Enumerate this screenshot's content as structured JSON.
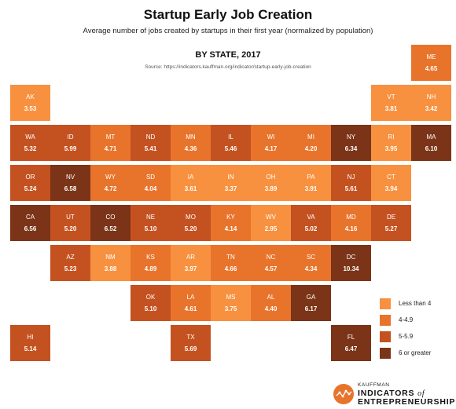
{
  "chart_data": {
    "type": "table",
    "title": "Startup Early Job Creation",
    "subtitle": "Average number of jobs created by startups in their first year (normalized by population)",
    "heading": "BY STATE, 2017",
    "source": "Source: https://indicators.kauffman.org/indicator/startup-early-job-creation",
    "legend": [
      {
        "label": "Less than 4",
        "color": "#f7913f"
      },
      {
        "label": "4-4.9",
        "color": "#e8742c"
      },
      {
        "label": "5-5.9",
        "color": "#c45221"
      },
      {
        "label": "6 or greater",
        "color": "#7b3418"
      }
    ],
    "states": [
      {
        "abbr": "ME",
        "value": "4.65",
        "row": 0,
        "col": 10
      },
      {
        "abbr": "AK",
        "value": "3.53",
        "row": 1,
        "col": 0
      },
      {
        "abbr": "VT",
        "value": "3.81",
        "row": 1,
        "col": 9
      },
      {
        "abbr": "NH",
        "value": "3.42",
        "row": 1,
        "col": 10
      },
      {
        "abbr": "WA",
        "value": "5.32",
        "row": 2,
        "col": 0
      },
      {
        "abbr": "ID",
        "value": "5.99",
        "row": 2,
        "col": 1
      },
      {
        "abbr": "MT",
        "value": "4.71",
        "row": 2,
        "col": 2
      },
      {
        "abbr": "ND",
        "value": "5.41",
        "row": 2,
        "col": 3
      },
      {
        "abbr": "MN",
        "value": "4.36",
        "row": 2,
        "col": 4
      },
      {
        "abbr": "IL",
        "value": "5.46",
        "row": 2,
        "col": 5
      },
      {
        "abbr": "WI",
        "value": "4.17",
        "row": 2,
        "col": 6
      },
      {
        "abbr": "MI",
        "value": "4.20",
        "row": 2,
        "col": 7
      },
      {
        "abbr": "NY",
        "value": "6.34",
        "row": 2,
        "col": 8
      },
      {
        "abbr": "RI",
        "value": "3.95",
        "row": 2,
        "col": 9
      },
      {
        "abbr": "MA",
        "value": "6.10",
        "row": 2,
        "col": 10
      },
      {
        "abbr": "OR",
        "value": "5.24",
        "row": 3,
        "col": 0
      },
      {
        "abbr": "NV",
        "value": "6.58",
        "row": 3,
        "col": 1
      },
      {
        "abbr": "WY",
        "value": "4.72",
        "row": 3,
        "col": 2
      },
      {
        "abbr": "SD",
        "value": "4.04",
        "row": 3,
        "col": 3
      },
      {
        "abbr": "IA",
        "value": "3.61",
        "row": 3,
        "col": 4
      },
      {
        "abbr": "IN",
        "value": "3.37",
        "row": 3,
        "col": 5
      },
      {
        "abbr": "OH",
        "value": "3.89",
        "row": 3,
        "col": 6
      },
      {
        "abbr": "PA",
        "value": "3.91",
        "row": 3,
        "col": 7
      },
      {
        "abbr": "NJ",
        "value": "5.61",
        "row": 3,
        "col": 8
      },
      {
        "abbr": "CT",
        "value": "3.94",
        "row": 3,
        "col": 9
      },
      {
        "abbr": "CA",
        "value": "6.56",
        "row": 4,
        "col": 0
      },
      {
        "abbr": "UT",
        "value": "5.20",
        "row": 4,
        "col": 1
      },
      {
        "abbr": "CO",
        "value": "6.52",
        "row": 4,
        "col": 2
      },
      {
        "abbr": "NE",
        "value": "5.10",
        "row": 4,
        "col": 3
      },
      {
        "abbr": "MO",
        "value": "5.20",
        "row": 4,
        "col": 4
      },
      {
        "abbr": "KY",
        "value": "4.14",
        "row": 4,
        "col": 5
      },
      {
        "abbr": "WV",
        "value": "2.95",
        "row": 4,
        "col": 6
      },
      {
        "abbr": "VA",
        "value": "5.02",
        "row": 4,
        "col": 7
      },
      {
        "abbr": "MD",
        "value": "4.16",
        "row": 4,
        "col": 8
      },
      {
        "abbr": "DE",
        "value": "5.27",
        "row": 4,
        "col": 9
      },
      {
        "abbr": "AZ",
        "value": "5.23",
        "row": 5,
        "col": 1
      },
      {
        "abbr": "NM",
        "value": "3.88",
        "row": 5,
        "col": 2
      },
      {
        "abbr": "KS",
        "value": "4.89",
        "row": 5,
        "col": 3
      },
      {
        "abbr": "AR",
        "value": "3.97",
        "row": 5,
        "col": 4
      },
      {
        "abbr": "TN",
        "value": "4.66",
        "row": 5,
        "col": 5
      },
      {
        "abbr": "NC",
        "value": "4.57",
        "row": 5,
        "col": 6
      },
      {
        "abbr": "SC",
        "value": "4.34",
        "row": 5,
        "col": 7
      },
      {
        "abbr": "DC",
        "value": "10.34",
        "row": 5,
        "col": 8
      },
      {
        "abbr": "OK",
        "value": "5.10",
        "row": 6,
        "col": 3
      },
      {
        "abbr": "LA",
        "value": "4.61",
        "row": 6,
        "col": 4
      },
      {
        "abbr": "MS",
        "value": "3.75",
        "row": 6,
        "col": 5
      },
      {
        "abbr": "AL",
        "value": "4.40",
        "row": 6,
        "col": 6
      },
      {
        "abbr": "GA",
        "value": "6.17",
        "row": 6,
        "col": 7
      },
      {
        "abbr": "HI",
        "value": "5.14",
        "row": 7,
        "col": 0
      },
      {
        "abbr": "TX",
        "value": "5.69",
        "row": 7,
        "col": 4
      },
      {
        "abbr": "FL",
        "value": "6.47",
        "row": 7,
        "col": 8
      }
    ]
  },
  "branding": {
    "kauffman": "KAUFFMAN",
    "line1": "INDICATORS",
    "of": "of",
    "line2": "ENTREPRENEURSHIP"
  }
}
